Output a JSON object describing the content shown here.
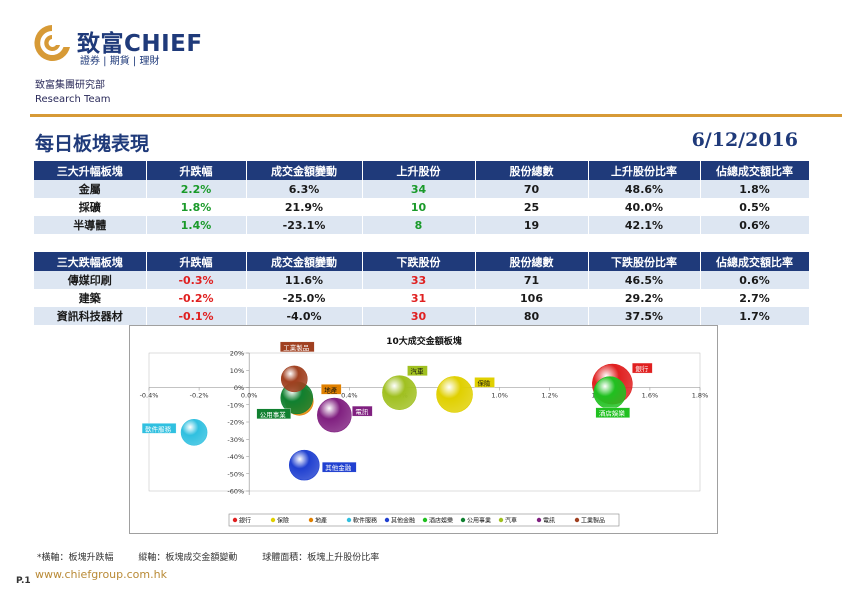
{
  "brand": {
    "name": "致富CHIEF",
    "sub": "證券 | 期貨 | 理財",
    "dept_cn": "致富集團研究部",
    "dept_en": "Research Team",
    "accent": "#d79a36",
    "navy": "#1f3a7a"
  },
  "header": {
    "title": "每日板塊表現",
    "date": "6/12/2016"
  },
  "gainers": {
    "headers": [
      "三大升幅板塊",
      "升跌幅",
      "成交金額變動",
      "上升股份",
      "股份總數",
      "上升股份比率",
      "佔總成交額比率"
    ],
    "rows": [
      [
        "金屬",
        "2.2%",
        "6.3%",
        "34",
        "70",
        "48.6%",
        "1.8%"
      ],
      [
        "採礦",
        "1.8%",
        "21.9%",
        "10",
        "25",
        "40.0%",
        "0.5%"
      ],
      [
        "半導體",
        "1.4%",
        "-23.1%",
        "8",
        "19",
        "42.1%",
        "0.6%"
      ]
    ]
  },
  "losers": {
    "headers": [
      "三大跌幅板塊",
      "升跌幅",
      "成交金額變動",
      "下跌股份",
      "股份總數",
      "下跌股份比率",
      "佔總成交額比率"
    ],
    "rows": [
      [
        "傳媒印刷",
        "-0.3%",
        "11.6%",
        "33",
        "71",
        "46.5%",
        "0.6%"
      ],
      [
        "建築",
        "-0.2%",
        "-25.0%",
        "31",
        "106",
        "29.2%",
        "2.7%"
      ],
      [
        "資訊科技器材",
        "-0.1%",
        "-4.0%",
        "30",
        "80",
        "37.5%",
        "1.7%"
      ]
    ]
  },
  "chart_data": {
    "type": "scatter",
    "title": "10大成交金額板塊",
    "xlim": [
      -0.4,
      1.8
    ],
    "ylim": [
      -60,
      20
    ],
    "x_ticks": [
      "-0.4%",
      "-0.2%",
      "0.0%",
      "0.2%",
      "0.4%",
      "0.6%",
      "0.8%",
      "1.0%",
      "1.2%",
      "1.4%",
      "1.6%",
      "1.8%"
    ],
    "y_ticks": [
      "20%",
      "10%",
      "0%",
      "-10%",
      "-20%",
      "-30%",
      "-40%",
      "-50%",
      "-60%"
    ],
    "series": [
      {
        "name": "銀行",
        "x": 1.45,
        "y": 2,
        "r": 20,
        "color": "#e02020"
      },
      {
        "name": "保險",
        "x": 0.82,
        "y": -4,
        "r": 18,
        "color": "#e0d000"
      },
      {
        "name": "地產",
        "x": 0.2,
        "y": -8,
        "r": 14,
        "color": "#e08000"
      },
      {
        "name": "軟件服務",
        "x": -0.22,
        "y": -26,
        "r": 13,
        "color": "#30c0e0"
      },
      {
        "name": "其他金融",
        "x": 0.22,
        "y": -45,
        "r": 15,
        "color": "#2040d0"
      },
      {
        "name": "酒店娛樂",
        "x": 1.44,
        "y": -3,
        "r": 16,
        "color": "#20c020"
      },
      {
        "name": "公用事業",
        "x": 0.19,
        "y": -6,
        "r": 16,
        "color": "#108030"
      },
      {
        "name": "汽車",
        "x": 0.6,
        "y": -3,
        "r": 17,
        "color": "#a0c020"
      },
      {
        "name": "電訊",
        "x": 0.34,
        "y": -16,
        "r": 17,
        "color": "#802080"
      },
      {
        "name": "工業製品",
        "x": 0.18,
        "y": 5,
        "r": 13,
        "color": "#a04020"
      }
    ],
    "legend": [
      "銀行",
      "保險",
      "地產",
      "軟件服務",
      "其他金融",
      "酒店娛樂",
      "公用事業",
      "汽車",
      "電訊",
      "工業製品"
    ],
    "legend_placement": "bottom",
    "grid": false
  },
  "footnote": {
    "x": "*橫軸：板塊升跌幅",
    "y": "縱軸：板塊成交金額變動",
    "size": "球體面積：板塊上升股份比率"
  },
  "page": "P.1",
  "url": "www.chiefgroup.com.hk"
}
